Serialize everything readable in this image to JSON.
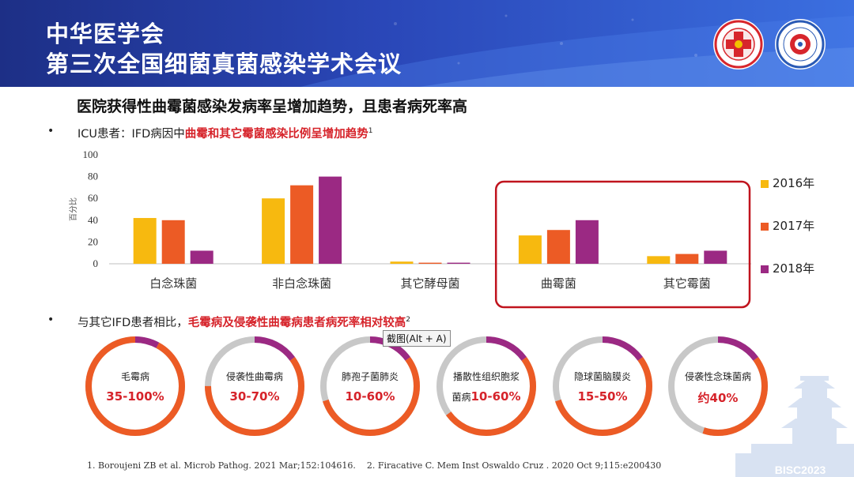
{
  "header": {
    "title_line1": "中华医学会",
    "title_line2": "第三次全国细菌真菌感染学术会议",
    "logo1": "chinese-medical-association-logo",
    "logo2": "conference-seal-logo"
  },
  "subtitle": "医院获得性曲霉菌感染发病率呈增加趋势，且患者病死率高",
  "bullet_glyph": "•",
  "line1": {
    "prefix": "ICU患者：IFD病因中",
    "highlight": "曲霉和其它霉菌感染比例呈增加趋势",
    "sup": "1"
  },
  "line2": {
    "prefix": "与其它IFD患者相比，",
    "highlight": "毛霉病及侵袭性曲霉病患者病死率相对较高",
    "sup": "2"
  },
  "chart_data": {
    "type": "bar",
    "categories": [
      "白念珠菌",
      "非白念珠菌",
      "其它酵母菌",
      "曲霉菌",
      "其它霉菌"
    ],
    "series": [
      {
        "name": "2016年",
        "values": [
          42,
          60,
          2,
          26,
          7
        ]
      },
      {
        "name": "2017年",
        "values": [
          40,
          72,
          1,
          31,
          9
        ]
      },
      {
        "name": "2018年",
        "values": [
          12,
          80,
          1,
          40,
          12
        ]
      }
    ],
    "ylabel": "百分比",
    "ylim": [
      0,
      100
    ],
    "yticks": [
      "0",
      "20",
      "40",
      "60",
      "80",
      "100"
    ],
    "legend": "right",
    "highlighted_categories": [
      "曲霉菌",
      "其它霉菌"
    ],
    "colors": [
      "#f7b90f",
      "#ec5b25",
      "#9b2983"
    ]
  },
  "rings": [
    {
      "label": "毛霉病",
      "value": "35-100%",
      "fraction": 0.92
    },
    {
      "label": "侵袭性曲霉病",
      "value": "30-70%",
      "fraction": 0.6
    },
    {
      "label": "肺孢子菌肺炎",
      "value": "10-60%",
      "fraction": 0.55
    },
    {
      "label": "播散性组织胞浆",
      "label2": "菌病",
      "value": "10-60%",
      "fraction": 0.5
    },
    {
      "label": "隐球菌脑膜炎",
      "value": "15-50%",
      "fraction": 0.55
    },
    {
      "label": "侵袭性念珠菌病",
      "value": "约40%",
      "fraction": 0.4
    }
  ],
  "colors": {
    "ring_track": "#c8c8c8",
    "ring_orange": "#ec5b25",
    "ring_purple": "#9b2983",
    "highlight_box": "#c0141e",
    "accent_red": "#d6232a"
  },
  "tooltip": "截图(Alt + A)",
  "references": [
    "1. Boroujeni ZB et al. Microb Pathog. 2021 Mar;152:104616.",
    "2. Firacative C. Mem Inst Oswaldo Cruz . 2020 Oct 9;115:e200430"
  ],
  "watermark": "BISC2023"
}
